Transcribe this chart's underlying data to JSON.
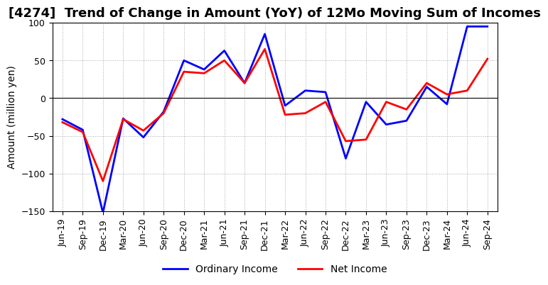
{
  "title": "[4274]  Trend of Change in Amount (YoY) of 12Mo Moving Sum of Incomes",
  "ylabel": "Amount (million yen)",
  "ylim": [
    -150,
    100
  ],
  "yticks": [
    -150,
    -100,
    -50,
    0,
    50,
    100
  ],
  "x_labels": [
    "Jun-19",
    "Sep-19",
    "Dec-19",
    "Mar-20",
    "Jun-20",
    "Sep-20",
    "Dec-20",
    "Mar-21",
    "Jun-21",
    "Sep-21",
    "Dec-21",
    "Mar-22",
    "Jun-22",
    "Sep-22",
    "Dec-22",
    "Mar-23",
    "Jun-23",
    "Sep-23",
    "Dec-23",
    "Mar-24",
    "Jun-24",
    "Sep-24"
  ],
  "ordinary_income": [
    -28,
    -42,
    -152,
    -27,
    -52,
    -18,
    50,
    38,
    63,
    20,
    85,
    -10,
    10,
    8,
    -80,
    -5,
    -35,
    -30,
    15,
    -8,
    95,
    95
  ],
  "net_income": [
    -32,
    -45,
    -110,
    -28,
    -43,
    -20,
    35,
    33,
    50,
    20,
    65,
    -22,
    -20,
    -5,
    -57,
    -55,
    -5,
    -15,
    20,
    5,
    10,
    52
  ],
  "ordinary_income_color": "#0000FF",
  "net_income_color": "#FF0000",
  "line_width": 2.0,
  "bg_color": "#FFFFFF",
  "grid_color": "#AAAAAA",
  "title_fontsize": 13,
  "label_fontsize": 10,
  "tick_fontsize": 9
}
